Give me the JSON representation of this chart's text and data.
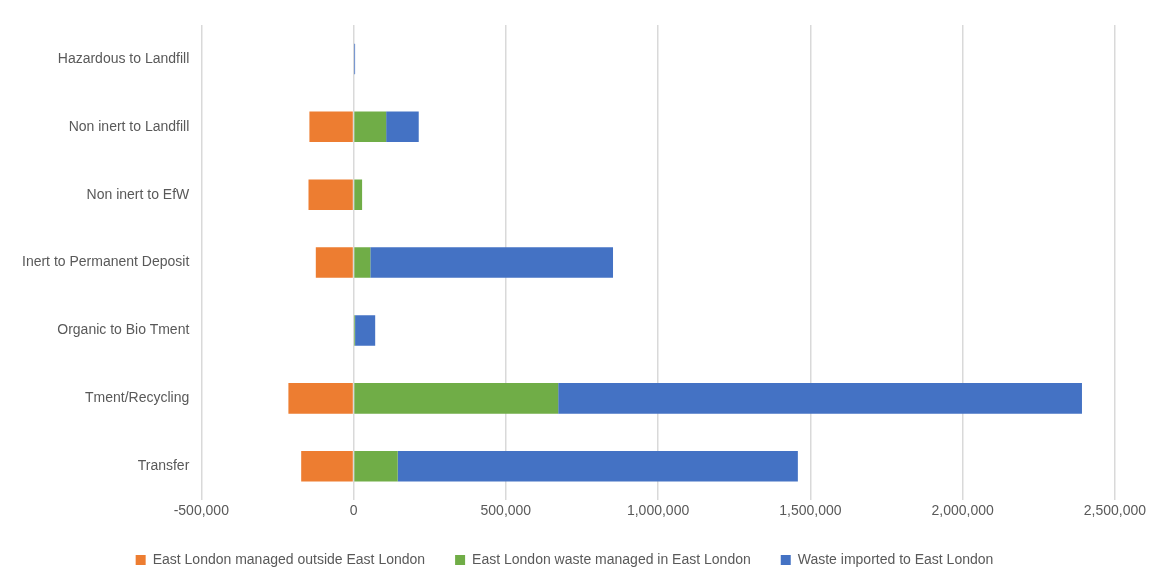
{
  "chart_data": {
    "type": "bar",
    "orientation": "horizontal",
    "stacked": true,
    "categories": [
      "Hazardous to Landfill",
      "Non inert to Landfill",
      "Non inert to EfW",
      "Inert to Permanent Deposit",
      "Organic to Bio Tment",
      "Tment/Recycling",
      "Transfer"
    ],
    "series": [
      {
        "name": "East London managed outside East London",
        "color": "#ed7d31",
        "values": [
          0,
          -145000,
          -148000,
          -124000,
          0,
          -214000,
          -172000
        ]
      },
      {
        "name": "East London waste managed in East London",
        "color": "#70ad47",
        "values": [
          null,
          107000,
          28000,
          55000,
          5000,
          672000,
          145000
        ]
      },
      {
        "name": "Waste imported to East London",
        "color": "#4472c4",
        "values": [
          5000,
          107000,
          0,
          797000,
          66000,
          1720000,
          1314000
        ]
      }
    ],
    "xlim": [
      -500000,
      2500000
    ],
    "xticks": [
      {
        "value": -500000,
        "label": "-500,000"
      },
      0,
      {
        "value": 500000,
        "label": "500,000"
      },
      {
        "value": 1000000,
        "label": "1,000,000"
      },
      {
        "value": 1500000,
        "label": "1,500,000"
      },
      {
        "value": 2000000,
        "label": "2,000,000"
      },
      {
        "value": 2500000,
        "label": "2,500,000"
      }
    ],
    "grid": "x",
    "legend": "bottom"
  }
}
